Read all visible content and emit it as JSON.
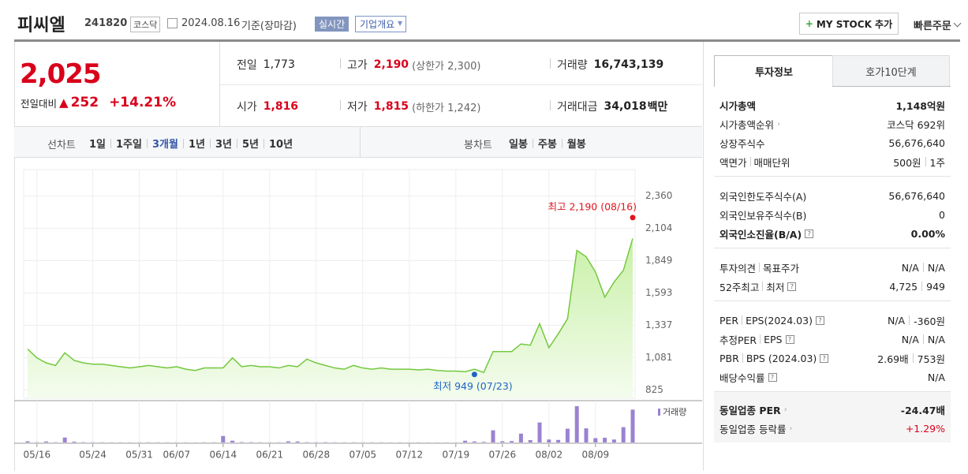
{
  "header": {
    "name": "피씨엘",
    "code": "241820",
    "market": "코스닥",
    "date": "2024.08.16",
    "basis": "기준(장마감)",
    "realtime": "실시간",
    "company_info": "기업개요",
    "mystock": "MY STOCK 추가",
    "quick_order": "빠른주문"
  },
  "price": {
    "current": "2,025",
    "change_label": "전일대비",
    "change": "252",
    "change_rate": "+14.21%"
  },
  "summary": [
    {
      "label": "전일",
      "value": "1,773"
    },
    {
      "label": "고가",
      "value": "2,190",
      "note": "(상한가 2,300)"
    },
    {
      "label": "거래량",
      "value": "16,743,139"
    },
    {
      "label": "시가",
      "value": "1,816"
    },
    {
      "label": "저가",
      "value": "1,815",
      "note": "(하한가 1,242)"
    },
    {
      "label": "거래대금",
      "value": "34,018",
      "unit": "백만"
    }
  ],
  "chart_tabs": {
    "label": "선차트",
    "periods": [
      "1일",
      "1주일",
      "3개월",
      "1년",
      "3년",
      "5년",
      "10년"
    ],
    "candle_label": "봉차트",
    "candles": [
      "일봉",
      "주봉",
      "월봉"
    ]
  },
  "chart_data": {
    "type": "line",
    "x": [
      "05/14",
      "05/16",
      "05/17",
      "05/20",
      "05/21",
      "05/22",
      "05/23",
      "05/24",
      "05/27",
      "05/28",
      "05/29",
      "05/30",
      "05/31",
      "06/03",
      "06/04",
      "06/05",
      "06/07",
      "06/10",
      "06/11",
      "06/12",
      "06/13",
      "06/14",
      "06/17",
      "06/18",
      "06/19",
      "06/20",
      "06/21",
      "06/24",
      "06/25",
      "06/26",
      "06/27",
      "06/28",
      "07/01",
      "07/02",
      "07/03",
      "07/04",
      "07/05",
      "07/08",
      "07/09",
      "07/10",
      "07/11",
      "07/12",
      "07/15",
      "07/16",
      "07/17",
      "07/18",
      "07/19",
      "07/22",
      "07/23",
      "07/24",
      "07/25",
      "07/26",
      "07/29",
      "07/30",
      "07/31",
      "08/01",
      "08/02",
      "08/05",
      "08/06",
      "08/07",
      "08/08",
      "08/09",
      "08/12",
      "08/13",
      "08/14",
      "08/16"
    ],
    "xticks": [
      "05/16",
      "05/24",
      "05/31",
      "06/07",
      "06/14",
      "06/21",
      "06/28",
      "07/05",
      "07/12",
      "07/19",
      "07/26",
      "08/02",
      "08/09"
    ],
    "series": [
      {
        "color": "#74c83f",
        "values": [
          1150,
          1080,
          1040,
          1020,
          1120,
          1060,
          1040,
          1030,
          1030,
          1020,
          1010,
          1000,
          1010,
          1020,
          1010,
          1000,
          1010,
          990,
          980,
          1000,
          1000,
          1000,
          1080,
          1010,
          1020,
          1010,
          1010,
          1000,
          1020,
          1010,
          1070,
          1040,
          1020,
          1000,
          990,
          1020,
          1000,
          990,
          1000,
          990,
          990,
          990,
          985,
          990,
          980,
          975,
          975,
          970,
          990,
          965,
          1130,
          1130,
          1130,
          1190,
          1180,
          1350,
          1160,
          1270,
          1390,
          1930,
          1880,
          1760,
          1560,
          1680,
          1773,
          2025
        ]
      },
      {
        "name": "거래량",
        "color": "#9b82d1",
        "axis": "y2",
        "values": [
          600000,
          150000,
          500000,
          120000,
          2500000,
          400000,
          150000,
          120000,
          100000,
          90000,
          100000,
          80000,
          90000,
          100000,
          90000,
          80000,
          90000,
          80000,
          70000,
          90000,
          90000,
          3300000,
          900000,
          200000,
          150000,
          100000,
          90000,
          100000,
          600000,
          500000,
          150000,
          120000,
          150000,
          100000,
          90000,
          100000,
          90000,
          80000,
          80000,
          70000,
          80000,
          70000,
          80000,
          70000,
          70000,
          60000,
          60000,
          900000,
          500000,
          300000,
          6200000,
          600000,
          700000,
          4500000,
          1200000,
          10200000,
          1500000,
          1300000,
          7000000,
          18500000,
          7200000,
          2200000,
          2400000,
          1500000,
          7800000,
          16743139
        ]
      }
    ],
    "ylim": [
      760,
      2570
    ],
    "yticks": [
      {
        "value": 825,
        "label": "825"
      },
      {
        "value": 1081,
        "label": "1,081"
      },
      {
        "value": 1337,
        "label": "1,337"
      },
      {
        "value": 1593,
        "label": "1,593"
      },
      {
        "value": 1849,
        "label": "1,849"
      },
      {
        "value": 2104,
        "label": "2,104"
      },
      {
        "value": 2360,
        "label": "2,360"
      }
    ],
    "grid": true,
    "annotations": [
      {
        "text": "최고 2,190 (08/16)",
        "x": "08/16",
        "value": 2190,
        "color": "#e0141e"
      },
      {
        "text": "최저 949 (07/23)",
        "x": "07/23",
        "value": 949,
        "color": "#1f63c6"
      }
    ]
  },
  "info_tabs": [
    "투자정보",
    "호가10단계"
  ],
  "info_sections": [
    [
      {
        "label": [
          "시가총액"
        ],
        "value": [
          "1,148억원"
        ]
      },
      {
        "label": [
          "시가총액순위"
        ],
        "value": [
          "코스닥 692위"
        ]
      },
      {
        "label": [
          "상장주식수"
        ],
        "value": [
          "56,676,640"
        ]
      },
      {
        "label": [
          "액면가",
          "매매단위"
        ],
        "value": [
          "500원",
          "1주"
        ]
      }
    ],
    [
      {
        "label": [
          "외국인한도주식수(A)"
        ],
        "value": [
          "56,676,640"
        ]
      },
      {
        "label": [
          "외국인보유주식수(B)"
        ],
        "value": [
          "0"
        ]
      },
      {
        "label": [
          "외국인소진율(B/A)"
        ],
        "value": [
          "0.00%"
        ]
      }
    ],
    [
      {
        "label": [
          "투자의견",
          "목표주가"
        ],
        "value": [
          "N/A",
          "N/A"
        ]
      },
      {
        "label": [
          "52주최고",
          "최저"
        ],
        "value": [
          "4,725",
          "949"
        ]
      }
    ],
    [
      {
        "label": [
          "PER",
          "EPS(2024.03)"
        ],
        "value": [
          "N/A",
          "-360원"
        ]
      },
      {
        "label": [
          "추정PER",
          "EPS"
        ],
        "value": [
          "N/A",
          "N/A"
        ]
      },
      {
        "label": [
          "PBR",
          "BPS (2024.03)"
        ],
        "value": [
          "2.69배",
          "753원"
        ]
      },
      {
        "label": [
          "배당수익률"
        ],
        "value": [
          "N/A"
        ]
      }
    ],
    [
      {
        "label": [
          "동일업종 PER"
        ],
        "value": [
          "-24.47배"
        ]
      },
      {
        "label": [
          "동일업종 등락률"
        ],
        "value": [
          "+1.29%"
        ]
      }
    ]
  ]
}
